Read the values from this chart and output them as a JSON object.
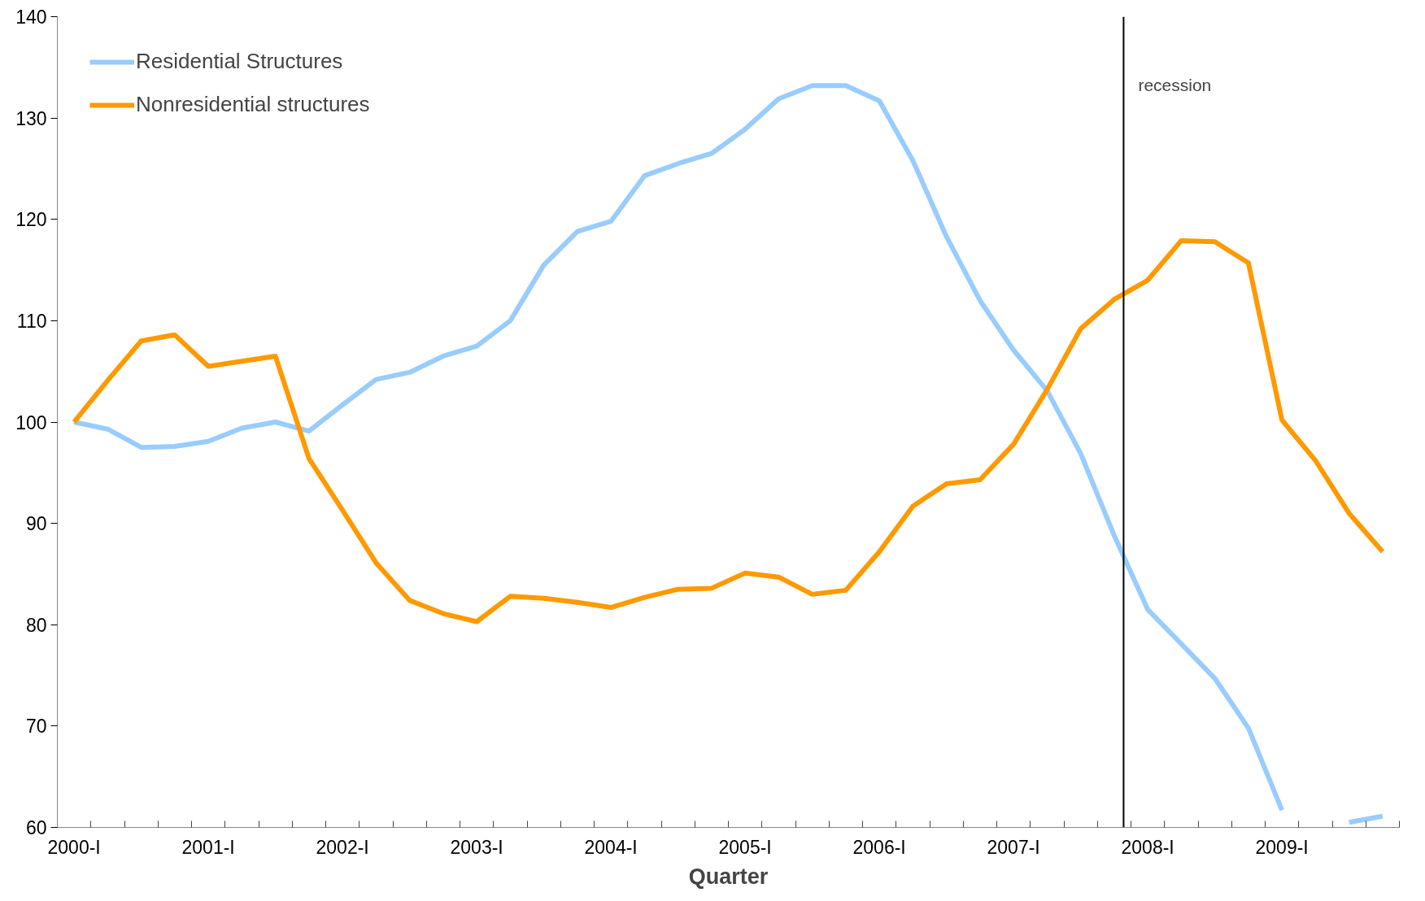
{
  "chart_data": {
    "type": "line",
    "xlabel": "Quarter",
    "x": [
      2000,
      2000.25,
      2000.5,
      2000.75,
      2001,
      2001.25,
      2001.5,
      2001.75,
      2002,
      2002.25,
      2002.5,
      2002.75,
      2003,
      2003.25,
      2003.5,
      2003.75,
      2004,
      2004.25,
      2004.5,
      2004.75,
      2005,
      2005.25,
      2005.5,
      2005.75,
      2006,
      2006.25,
      2006.5,
      2006.75,
      2007,
      2007.25,
      2007.5,
      2007.75,
      2008,
      2008.25,
      2008.5,
      2008.75,
      2009,
      2009.25,
      2009.5,
      2009.75
    ],
    "xlim": [
      1999.875,
      2009.875
    ],
    "xticks": [
      {
        "value": 2000,
        "label": "2000-I"
      },
      {
        "value": 2001,
        "label": "2001-I"
      },
      {
        "value": 2002,
        "label": "2002-I"
      },
      {
        "value": 2003,
        "label": "2003-I"
      },
      {
        "value": 2004,
        "label": "2004-I"
      },
      {
        "value": 2005,
        "label": "2005-I"
      },
      {
        "value": 2006,
        "label": "2006-I"
      },
      {
        "value": 2007,
        "label": "2007-I"
      },
      {
        "value": 2008,
        "label": "2008-I"
      },
      {
        "value": 2009,
        "label": "2009-I"
      }
    ],
    "ylim": [
      60,
      140
    ],
    "yticks": [
      60,
      70,
      80,
      90,
      100,
      110,
      120,
      130,
      140
    ],
    "grid": false,
    "legend": "top left",
    "marker": "none",
    "line_style": "solid",
    "series": [
      {
        "name": "Residential Structures",
        "color": "#99ccff",
        "values": [
          100,
          99.3,
          97.5,
          97.6,
          98.1,
          99.4,
          100,
          99.1,
          101.7,
          104.2,
          104.9,
          106.5,
          107.5,
          110,
          115.5,
          118.8,
          119.8,
          124.3,
          125.5,
          126.5,
          128.9,
          131.9,
          133.2,
          133.2,
          131.7,
          125.8,
          118.3,
          112,
          107.1,
          103.1,
          96.9,
          88.8,
          81.5,
          78.1,
          74.7,
          69.8,
          61.7,
          null,
          60.5,
          61.1
        ]
      },
      {
        "name": "Nonresidential structures",
        "color": "#ff9900",
        "values": [
          100,
          104.1,
          108,
          108.6,
          105.5,
          106,
          106.5,
          96.4,
          91.3,
          86.1,
          82.4,
          81.1,
          80.3,
          82.8,
          82.6,
          82.2,
          81.7,
          82.7,
          83.5,
          83.6,
          85.1,
          84.7,
          83,
          83.4,
          87.2,
          91.7,
          93.9,
          94.3,
          97.8,
          103.2,
          109.2,
          112.1,
          114,
          117.9,
          117.8,
          115.7,
          100.2,
          96.2,
          91,
          87.2
        ]
      }
    ],
    "ref_lines": [
      {
        "axis": "x",
        "value": 2007.82,
        "label": "recession",
        "color": "#000000"
      }
    ]
  }
}
